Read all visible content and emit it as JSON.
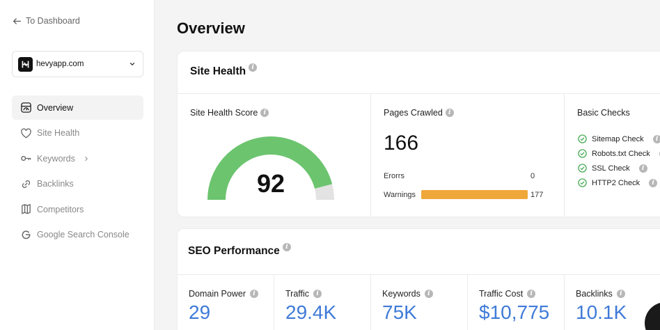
{
  "sidebar": {
    "back_label": "To Dashboard",
    "site": "hevyapp.com",
    "items": [
      {
        "label": "Overview",
        "icon": "overview-icon"
      },
      {
        "label": "Site Health",
        "icon": "heart-icon"
      },
      {
        "label": "Keywords",
        "icon": "key-icon"
      },
      {
        "label": "Backlinks",
        "icon": "link-icon"
      },
      {
        "label": "Competitors",
        "icon": "competitors-icon"
      },
      {
        "label": "Google Search Console",
        "icon": "google-icon"
      }
    ]
  },
  "main": {
    "title": "Overview",
    "site_health": {
      "header": "Site Health",
      "score_label": "Site Health Score",
      "score": 92,
      "score_value": "92",
      "pages_label": "Pages Crawled",
      "pages_value": "166",
      "errors_label": "Erorrs",
      "errors_value": "0",
      "warnings_label": "Warnings",
      "warnings_value": "177",
      "checks_label": "Basic Checks",
      "checks": [
        "Sitemap Check",
        "Robots.txt Check",
        "SSL Check",
        "HTTP2 Check"
      ]
    },
    "seo": {
      "header": "SEO Performance",
      "metrics": [
        {
          "label": "Domain Power",
          "value": "29"
        },
        {
          "label": "Traffic",
          "value": "29.4K"
        },
        {
          "label": "Keywords",
          "value": "75K"
        },
        {
          "label": "Traffic Cost",
          "value": "$10,775"
        },
        {
          "label": "Backlinks",
          "value": "10.1K"
        }
      ]
    }
  },
  "colors": {
    "gauge_fill": "#6cc46f",
    "gauge_track": "#e3e3e3",
    "warning_bar": "#f0a73a",
    "metric_value": "#3f7ad8",
    "check_green": "#3aa54a"
  }
}
